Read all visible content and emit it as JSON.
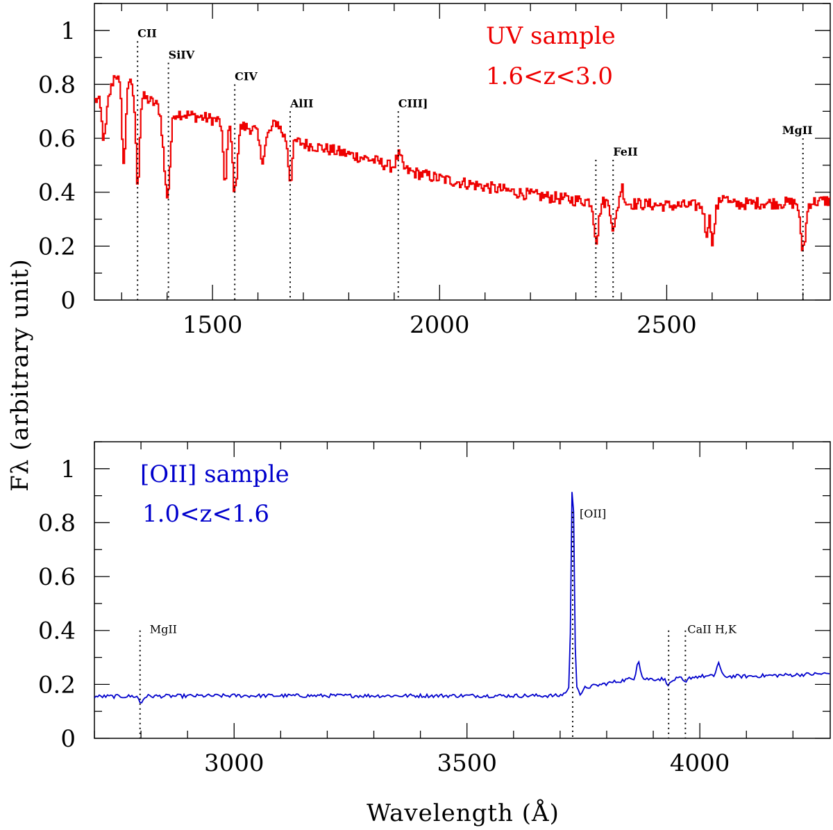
{
  "chart_data": [
    {
      "type": "line",
      "panel": "top",
      "color": "#ee0000",
      "xlim": [
        1240,
        2860
      ],
      "ylim": [
        0,
        1.1
      ],
      "xticks": [
        1500,
        2000,
        2500
      ],
      "yticks": [
        0,
        0.2,
        0.4,
        0.6,
        0.8,
        1
      ],
      "ytick_labels": [
        "0",
        "0.2",
        "0.4",
        "0.6",
        "0.8",
        "1"
      ],
      "annotations": [
        "UV sample",
        "1.6<z<3.0"
      ],
      "continuum": [
        [
          1240,
          0.74
        ],
        [
          1300,
          0.79
        ],
        [
          1340,
          0.76
        ],
        [
          1400,
          0.7
        ],
        [
          1500,
          0.67
        ],
        [
          1600,
          0.63
        ],
        [
          1700,
          0.58
        ],
        [
          1800,
          0.54
        ],
        [
          1850,
          0.52
        ],
        [
          1900,
          0.49
        ],
        [
          2000,
          0.45
        ],
        [
          2100,
          0.42
        ],
        [
          2200,
          0.39
        ],
        [
          2300,
          0.37
        ],
        [
          2400,
          0.36
        ],
        [
          2500,
          0.35
        ],
        [
          2600,
          0.35
        ],
        [
          2700,
          0.36
        ],
        [
          2800,
          0.36
        ],
        [
          2860,
          0.37
        ]
      ],
      "features": [
        {
          "x": 1260,
          "depth": 0.16,
          "w": 5
        },
        {
          "x": 1304,
          "depth": 0.32,
          "w": 4
        },
        {
          "x": 1334,
          "depth": 0.33,
          "w": 4
        },
        {
          "x": 1395,
          "depth": 0.2,
          "w": 6
        },
        {
          "x": 1402,
          "depth": 0.18,
          "w": 5
        },
        {
          "x": 1526,
          "depth": 0.22,
          "w": 4
        },
        {
          "x": 1548,
          "depth": 0.25,
          "w": 5
        },
        {
          "x": 1608,
          "depth": 0.1,
          "w": 6
        },
        {
          "x": 1670,
          "depth": 0.15,
          "w": 4
        },
        {
          "x": 2344,
          "depth": 0.14,
          "w": 5
        },
        {
          "x": 2382,
          "depth": 0.1,
          "w": 5
        },
        {
          "x": 2586,
          "depth": 0.1,
          "w": 4
        },
        {
          "x": 2600,
          "depth": 0.13,
          "w": 4
        },
        {
          "x": 2796,
          "depth": 0.14,
          "w": 4
        },
        {
          "x": 2803,
          "depth": 0.1,
          "w": 4
        },
        {
          "x": 1285,
          "depth": -0.06,
          "w": 6
        },
        {
          "x": 1310,
          "depth": -0.06,
          "w": 6
        },
        {
          "x": 1640,
          "depth": -0.05,
          "w": 8
        },
        {
          "x": 1909,
          "depth": -0.05,
          "w": 6
        },
        {
          "x": 2625,
          "depth": -0.04,
          "w": 6
        },
        {
          "x": 2400,
          "depth": -0.06,
          "w": 4
        }
      ],
      "lines": [
        {
          "label": "CII",
          "x": 1335,
          "top": 0.96
        },
        {
          "label": "SiIV",
          "x": 1403,
          "top": 0.88
        },
        {
          "label": "CIV",
          "x": 1549,
          "top": 0.8
        },
        {
          "label": "AlII",
          "x": 1671,
          "top": 0.7
        },
        {
          "label": "CIII]",
          "x": 1909,
          "top": 0.7
        },
        {
          "label": "",
          "x": 2344,
          "top": 0.52
        },
        {
          "label": "FeII",
          "x": 2382,
          "top": 0.52
        },
        {
          "label": "MgII",
          "x": 2800,
          "top": 0.6
        }
      ],
      "ylabel": "Fλ (arbitrary unit)"
    },
    {
      "type": "line",
      "panel": "bottom",
      "color": "#0000cc",
      "xlim": [
        2700,
        4280
      ],
      "ylim": [
        0,
        1.1
      ],
      "xticks": [
        3000,
        3500,
        4000
      ],
      "yticks": [
        0,
        0.2,
        0.4,
        0.6,
        0.8,
        1
      ],
      "ytick_labels": [
        "0",
        "0.2",
        "0.4",
        "0.6",
        "0.8",
        "1"
      ],
      "annotations": [
        "[OII] sample",
        "1.0<z<1.6"
      ],
      "continuum": [
        [
          2700,
          0.155
        ],
        [
          3000,
          0.158
        ],
        [
          3500,
          0.158
        ],
        [
          3700,
          0.158
        ],
        [
          3730,
          0.19
        ],
        [
          3760,
          0.19
        ],
        [
          3850,
          0.22
        ],
        [
          3950,
          0.22
        ],
        [
          4000,
          0.23
        ],
        [
          4100,
          0.23
        ],
        [
          4280,
          0.24
        ]
      ],
      "features": [
        {
          "x": 3727,
          "depth": -0.82,
          "w": 3
        },
        {
          "x": 2800,
          "depth": 0.025,
          "w": 4
        },
        {
          "x": 3868,
          "depth": -0.07,
          "w": 4
        },
        {
          "x": 3934,
          "depth": 0.02,
          "w": 5
        },
        {
          "x": 3969,
          "depth": 0.02,
          "w": 4
        },
        {
          "x": 3745,
          "depth": 0.03,
          "w": 4
        },
        {
          "x": 4040,
          "depth": -0.05,
          "w": 4
        }
      ],
      "lines": [
        {
          "label": "MgII",
          "x": 2798,
          "top": 0.4
        },
        {
          "label": "[OII]",
          "x": 3727,
          "top": 0.84
        },
        {
          "label": "",
          "x": 3933,
          "top": 0.4
        },
        {
          "label": "CaII H,K",
          "x": 3969,
          "top": 0.4
        }
      ],
      "xlabel": "Wavelength (Å)"
    }
  ]
}
